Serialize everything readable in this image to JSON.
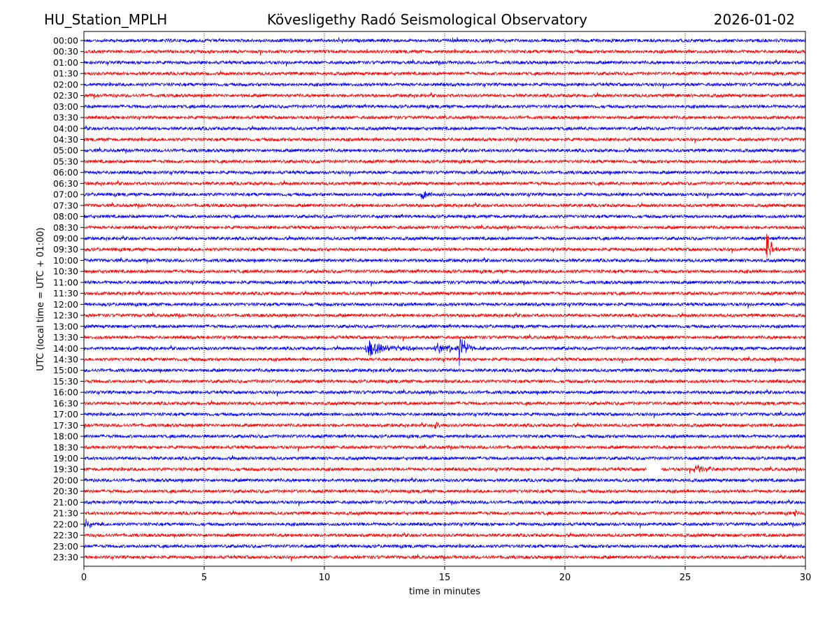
{
  "header": {
    "station": "HU_Station_MPLH",
    "title": "Kövesligethy Radó Seismological Observatory",
    "date": "2026-01-02"
  },
  "chart_data": {
    "type": "line",
    "subtype": "helicorder",
    "xlabel": "time in minutes",
    "ylabel": "UTC (local time = UTC + 01:00)",
    "xlim": [
      0,
      30
    ],
    "xticks": [
      0,
      5,
      10,
      15,
      20,
      25,
      30
    ],
    "grid": "vertical dotted at every 5 minutes",
    "colors": [
      "#0000ff",
      "#ff0000"
    ],
    "rows": [
      "00:00",
      "00:30",
      "01:00",
      "01:30",
      "02:00",
      "02:30",
      "03:00",
      "03:30",
      "04:00",
      "04:30",
      "05:00",
      "05:30",
      "06:00",
      "06:30",
      "07:00",
      "07:30",
      "08:00",
      "08:30",
      "09:00",
      "09:30",
      "10:00",
      "10:30",
      "11:00",
      "11:30",
      "12:00",
      "12:30",
      "13:00",
      "13:30",
      "14:00",
      "14:30",
      "15:00",
      "15:30",
      "16:00",
      "16:30",
      "17:00",
      "17:30",
      "18:00",
      "18:30",
      "19:00",
      "19:30",
      "20:00",
      "20:30",
      "21:00",
      "21:30",
      "22:00",
      "22:30",
      "23:00",
      "23:30"
    ],
    "events": [
      {
        "row": "07:00",
        "start": 14.0,
        "end": 14.8,
        "amp": 1.0
      },
      {
        "row": "08:00",
        "start": 12.2,
        "end": 12.5,
        "amp": 0.5
      },
      {
        "row": "09:30",
        "start": 28.35,
        "end": 29.0,
        "amp": 3.0
      },
      {
        "row": "14:00",
        "start": 11.65,
        "end": 14.3,
        "amp": 1.3
      },
      {
        "row": "14:00",
        "start": 14.4,
        "end": 17.6,
        "amp": 0.8
      },
      {
        "row": "14:00",
        "start": 15.55,
        "end": 16.3,
        "amp": 2.9
      },
      {
        "row": "17:30",
        "start": 14.55,
        "end": 15.0,
        "amp": 1.0
      },
      {
        "row": "19:30",
        "start": 25.3,
        "end": 27.2,
        "amp": 0.7
      },
      {
        "row": "21:30",
        "start": 29.5,
        "end": 30.0,
        "amp": 0.6
      },
      {
        "row": "22:00",
        "start": 0.0,
        "end": 1.0,
        "amp": 0.6
      },
      {
        "row": "22:30",
        "start": 0.45,
        "end": 0.6,
        "amp": 0.7
      }
    ],
    "gaps": [
      {
        "row": "19:30",
        "start": 23.4,
        "end": 24.0
      }
    ]
  }
}
